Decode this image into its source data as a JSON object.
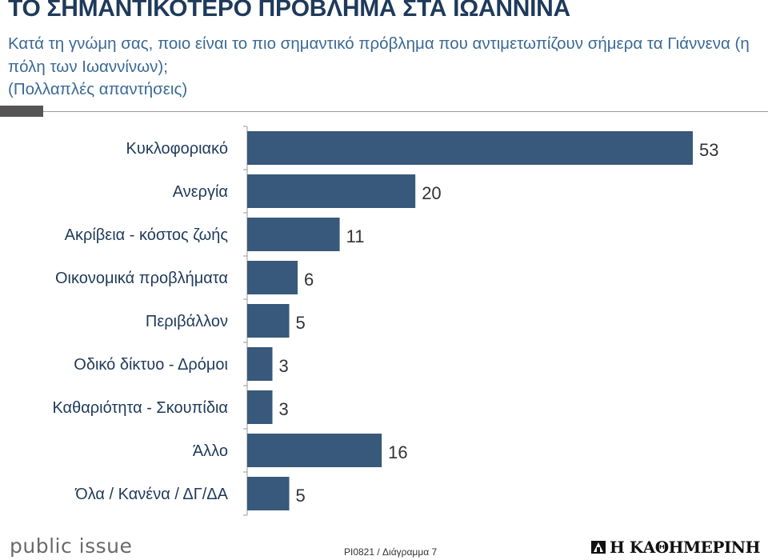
{
  "header": {
    "title": "ΤΟ ΣΗΜΑΝΤΙΚΟΤΕΡΟ ΠΡΟΒΛΗΜΑ ΣΤΑ ΙΩΑΝΝΙΝΑ",
    "question": "Κατά τη γνώμη σας, ποιο είναι το πιο σημαντικό πρόβλημα που αντιμετωπίζουν σήμερα τα Γιάννενα (η πόλη των Ιωαννίνων);",
    "note": "(Πολλαπλές απαντήσεις)"
  },
  "chart_data": {
    "type": "bar",
    "orientation": "horizontal",
    "title": "ΤΟ ΣΗΜΑΝΤΙΚΟΤΕΡΟ ΠΡΟΒΛΗΜΑ ΣΤΑ ΙΩΑΝΝΙΝΑ",
    "categories": [
      "Κυκλοφοριακό",
      "Ανεργία",
      "Ακρίβεια - κόστος ζωής",
      "Οικονομικά προβλήματα",
      "Περιβάλλον",
      "Οδικό δίκτυο - Δρόμοι",
      "Καθαριότητα - Σκουπίδια",
      "Άλλο",
      "Όλα / Κανένα / ΔΓ/ΔΑ"
    ],
    "values": [
      53,
      20,
      11,
      6,
      5,
      3,
      3,
      16,
      5
    ],
    "xlim": [
      0,
      60
    ],
    "grid": false,
    "legend": "none",
    "data_labels": true,
    "bar_color": "#38597b"
  },
  "footer": {
    "brand_left": "public issue",
    "note": "PI0821 / Διάγραμμα 7",
    "brand_right": "Η ΚΑΘΗΜΕΡΙΝΗ",
    "emblem_icon": "kathimerini-emblem-icon"
  }
}
